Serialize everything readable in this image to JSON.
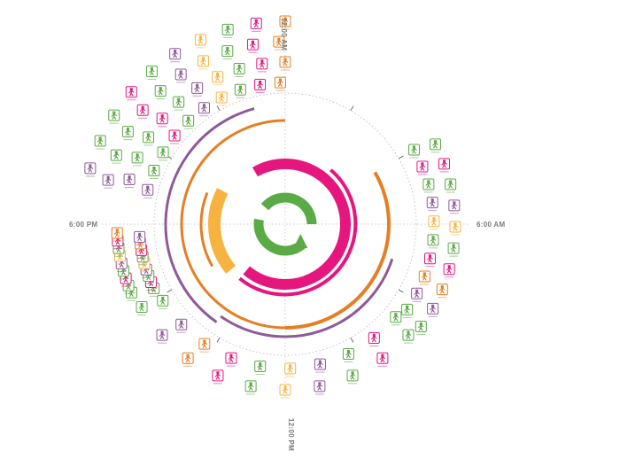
{
  "clock_labels": {
    "top": "12:00 AM",
    "right": "6:00 AM",
    "bottom": "12:00 PM",
    "left": "6:00 PM"
  },
  "colors": {
    "green": "#5aaa45",
    "magenta": "#e5177e",
    "orange": "#e67e22",
    "yellow": "#f7b340",
    "purple": "#8e5a9a",
    "guide": "#b8b8b8",
    "label": "#7a7a7a"
  },
  "arcs": [
    {
      "name": "green-arc-1",
      "color": "green",
      "start_deg": 140,
      "end_deg": 280,
      "r": 30,
      "width": 11
    },
    {
      "name": "green-arc-2",
      "color": "green",
      "start_deg": 310,
      "end_deg": 395,
      "r": 30,
      "width": 11
    },
    {
      "name": "green-arc-3",
      "color": "green",
      "start_deg": 395,
      "end_deg": 450,
      "r": 30,
      "width": 11
    },
    {
      "name": "magenta-arc-1",
      "color": "magenta",
      "start_deg": -30,
      "end_deg": 90,
      "r": 68,
      "width": 12
    },
    {
      "name": "magenta-arc-2",
      "color": "magenta",
      "start_deg": 90,
      "end_deg": 220,
      "r": 68,
      "width": 12
    },
    {
      "name": "magenta-arc-thin",
      "color": "magenta",
      "start_deg": 40,
      "end_deg": 220,
      "r": 80,
      "width": 4
    },
    {
      "name": "yellow-arc",
      "color": "yellow",
      "start_deg": 230,
      "end_deg": 298,
      "r": 80,
      "width": 14
    },
    {
      "name": "orange-arc-1",
      "color": "orange",
      "start_deg": 60,
      "end_deg": 180,
      "r": 117,
      "width": 4
    },
    {
      "name": "orange-arc-2",
      "color": "orange",
      "start_deg": 180,
      "end_deg": 360,
      "r": 117,
      "width": 3
    },
    {
      "name": "orange-arc-3",
      "color": "orange",
      "start_deg": 240,
      "end_deg": 292,
      "r": 95,
      "width": 3
    },
    {
      "name": "purple-arc-1",
      "color": "purple",
      "start_deg": 108,
      "end_deg": 215,
      "r": 127,
      "width": 3
    },
    {
      "name": "purple-arc-2",
      "color": "purple",
      "start_deg": 215,
      "end_deg": 335,
      "r": 135,
      "width": 3
    },
    {
      "name": "purple-arc-3",
      "color": "purple",
      "start_deg": 335,
      "end_deg": 345,
      "r": 135,
      "width": 3
    }
  ],
  "icon_rings": [
    {
      "name": "icon-ring-right",
      "count": 20,
      "start_deg": 60,
      "end_deg": 125,
      "radii": [
        168,
        192
      ]
    },
    {
      "name": "icon-ring-bottom",
      "count": 20,
      "start_deg": 130,
      "end_deg": 238,
      "radii": [
        163,
        187
      ]
    },
    {
      "name": "icon-ring-left",
      "count": 18,
      "start_deg": 244,
      "end_deg": 265,
      "radii": [
        165,
        190
      ]
    },
    {
      "name": "icon-ring-upper-left",
      "count": 40,
      "start_deg": 284,
      "end_deg": 358,
      "radii": [
        160,
        183,
        206,
        229
      ]
    }
  ],
  "icon_color_sequence": [
    "green",
    "magenta",
    "green",
    "purple",
    "yellow",
    "green",
    "magenta",
    "orange",
    "purple",
    "green"
  ]
}
